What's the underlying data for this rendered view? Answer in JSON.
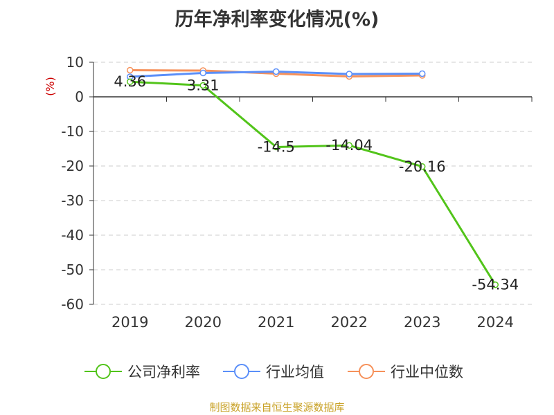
{
  "title": "历年净利率变化情况(%)",
  "footer": "制图数据来自恒生聚源数据库",
  "chart_data": {
    "type": "line",
    "title": "历年净利率变化情况(%)",
    "ylabel": "(%)",
    "xlabel": "",
    "categories": [
      "2019",
      "2020",
      "2021",
      "2022",
      "2023",
      "2024"
    ],
    "ylim": [
      -60,
      10
    ],
    "yticks": [
      "10",
      "0",
      "-10",
      "-20",
      "-30",
      "-40",
      "-50",
      "-60"
    ],
    "grid": true,
    "legend_position": "bottom",
    "series": [
      {
        "name": "公司净利率",
        "color": "#52c41a",
        "values": [
          4.36,
          3.31,
          -14.5,
          -14.04,
          -20.16,
          -54.34
        ],
        "labels": [
          "4.36",
          "3.31",
          "-14.5",
          "-14.04",
          "-20.16",
          "-54.34"
        ]
      },
      {
        "name": "行业均值",
        "color": "#5b8ff9",
        "values": [
          5.8,
          6.9,
          7.3,
          6.6,
          6.7,
          null
        ]
      },
      {
        "name": "行业中位数",
        "color": "#f6915a",
        "values": [
          7.7,
          7.6,
          6.7,
          5.9,
          6.2,
          null
        ]
      }
    ]
  }
}
